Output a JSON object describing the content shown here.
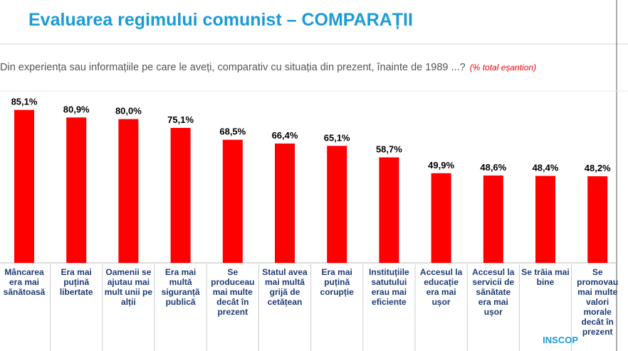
{
  "chart_data": {
    "type": "bar",
    "title": "Evaluarea regimului comunist – COMPARAȚII",
    "subtitle": "Din experiența sau informațiile pe care le aveți, comparativ cu situația din prezent, înainte de 1989 ...?",
    "note": "(% total eșantion)",
    "source": "INSCOP",
    "categories": [
      "Mâncarea era mai sănătoasă",
      "Era mai puțină libertate",
      "Oamenii se ajutau mai mult unii pe alții",
      "Era mai multă siguranță publică",
      "Se produceau mai multe decât în prezent",
      "Statul avea mai multă grijă de cetățean",
      "Era mai puțină corupție",
      "Instituțiile satutului erau mai eficiente",
      "Accesul la educație era mai ușor",
      "Accesul la servicii de sănătate era mai ușor",
      "Se trăia mai bine",
      "Se promovau mai multe valori morale decât în prezent"
    ],
    "values": [
      85.1,
      80.9,
      80.0,
      75.1,
      68.5,
      66.4,
      65.1,
      58.7,
      49.9,
      48.6,
      48.4,
      48.2
    ],
    "value_labels": [
      "85,1%",
      "80,9%",
      "80,0%",
      "75,1%",
      "68,5%",
      "66,4%",
      "65,1%",
      "58,7%",
      "49,9%",
      "48,6%",
      "48,4%",
      "48,2%"
    ],
    "color": "#ff0000"
  }
}
